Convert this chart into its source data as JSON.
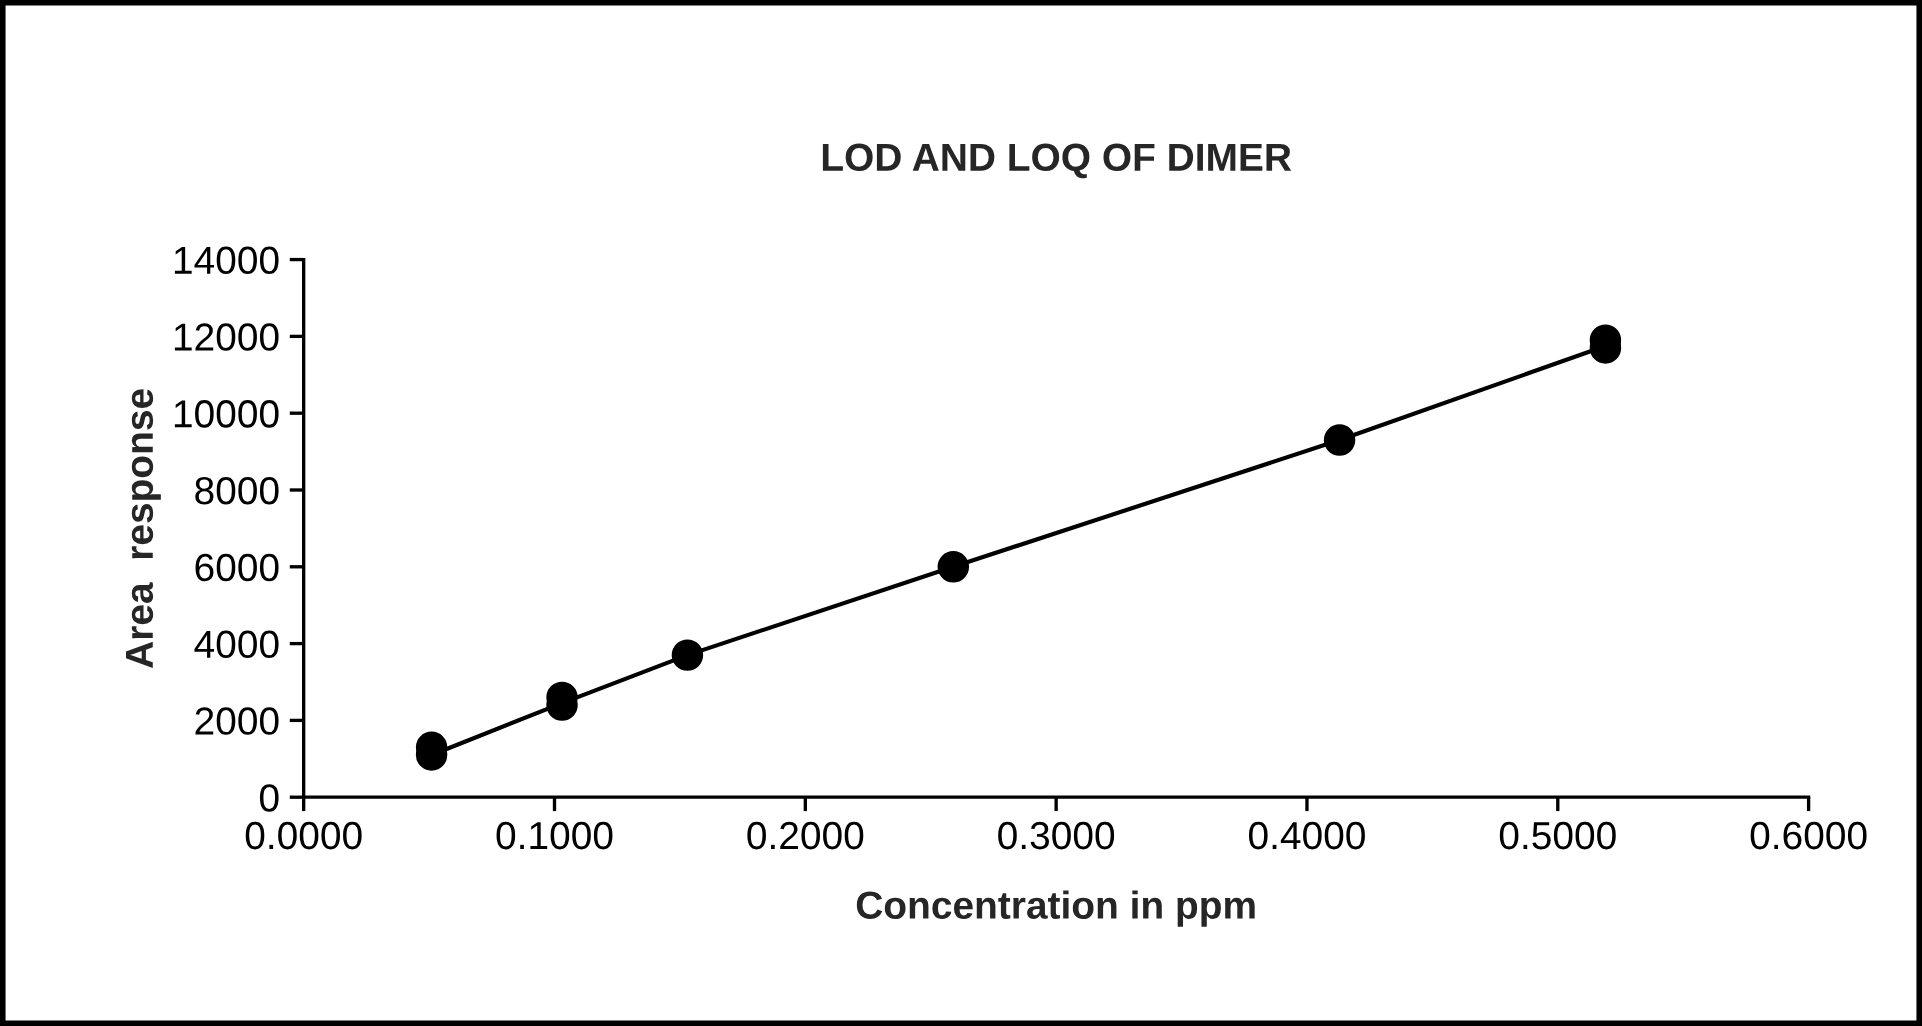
{
  "chart_data": {
    "type": "scatter",
    "title": "LOD AND LOQ OF DIMER",
    "xlabel": "Concentration in ppm",
    "ylabel": "Area  response",
    "series": [
      {
        "color": "#000000",
        "marker": "circle",
        "x": [
          0.051,
          0.051,
          0.103,
          0.103,
          0.153,
          0.259,
          0.413,
          0.519,
          0.519
        ],
        "values": [
          1300,
          1100,
          2600,
          2400,
          3700,
          6000,
          9300,
          11900,
          11700
        ]
      },
      {
        "type": "line",
        "color": "#000000",
        "marker": "none",
        "line_style": "solid",
        "x": [
          0.051,
          0.103,
          0.153,
          0.259,
          0.413,
          0.519
        ],
        "values": [
          1100,
          2450,
          3700,
          6000,
          9300,
          11750
        ]
      }
    ],
    "xlim": [
      0,
      0.6
    ],
    "ylim": [
      0,
      14000
    ],
    "xticks": [
      {
        "value": 0,
        "label": "0.0000"
      },
      {
        "value": 0.1,
        "label": "0.1000"
      },
      {
        "value": 0.2,
        "label": "0.2000"
      },
      {
        "value": 0.3,
        "label": "0.3000"
      },
      {
        "value": 0.4,
        "label": "0.4000"
      },
      {
        "value": 0.5,
        "label": "0.5000"
      },
      {
        "value": 0.6,
        "label": "0.6000"
      }
    ],
    "yticks": [
      0,
      2000,
      4000,
      6000,
      8000,
      10000,
      12000,
      14000
    ],
    "grid": false,
    "legend": false
  }
}
